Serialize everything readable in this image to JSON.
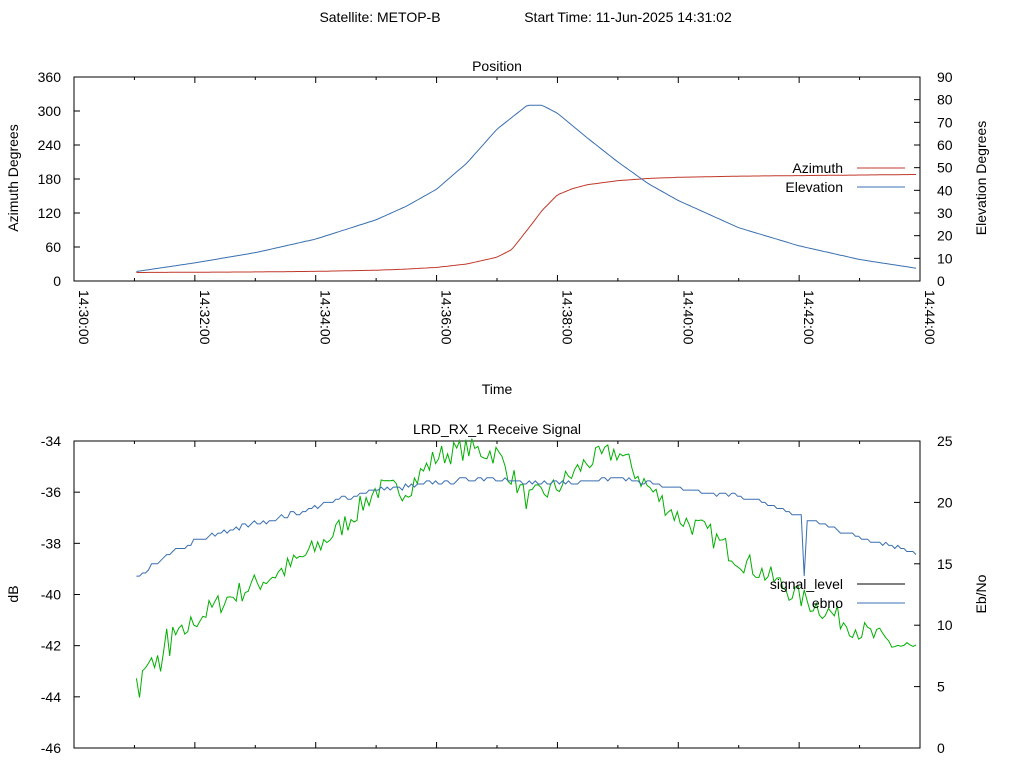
{
  "header": {
    "satellite": "Satellite: METOP-B",
    "start_time": "Start Time: 11-Jun-2025 14:31:02"
  },
  "chart_data": [
    {
      "type": "line",
      "title": "Position",
      "xlabel": "Time",
      "ylabel": "Azimuth Degrees",
      "y2label": "Elevation Degrees",
      "xlim": [
        "14:30:00",
        "14:44:00"
      ],
      "xticks": [
        "14:30:00",
        "14:32:00",
        "14:34:00",
        "14:36:00",
        "14:38:00",
        "14:40:00",
        "14:42:00",
        "14:44:00"
      ],
      "ylim": [
        0,
        360
      ],
      "yticks": [
        0,
        60,
        120,
        180,
        240,
        300,
        360
      ],
      "y2lim": [
        0,
        90
      ],
      "y2ticks": [
        0,
        10,
        20,
        30,
        40,
        50,
        60,
        70,
        80,
        90
      ],
      "legend_position": "right",
      "series": [
        {
          "name": "Azimuth",
          "axis": "y",
          "color": "#c0392b",
          "x": [
            "14:31:02",
            "14:32:00",
            "14:33:00",
            "14:34:00",
            "14:35:00",
            "14:35:30",
            "14:36:00",
            "14:36:30",
            "14:37:00",
            "14:37:15",
            "14:37:30",
            "14:37:45",
            "14:38:00",
            "14:38:15",
            "14:38:30",
            "14:39:00",
            "14:39:30",
            "14:40:00",
            "14:41:00",
            "14:42:00",
            "14:43:00",
            "14:43:58"
          ],
          "values": [
            15,
            15.5,
            16,
            17,
            19,
            21,
            24,
            30,
            42,
            56,
            90,
            125,
            152,
            163,
            170,
            177,
            181,
            183,
            185,
            186,
            187,
            188
          ]
        },
        {
          "name": "Elevation",
          "axis": "y2",
          "color": "#3a6fb0",
          "x": [
            "14:31:02",
            "14:32:00",
            "14:33:00",
            "14:34:00",
            "14:35:00",
            "14:35:30",
            "14:36:00",
            "14:36:30",
            "14:37:00",
            "14:37:30",
            "14:37:45",
            "14:38:00",
            "14:38:30",
            "14:39:00",
            "14:39:30",
            "14:40:00",
            "14:41:00",
            "14:42:00",
            "14:43:00",
            "14:43:58"
          ],
          "values": [
            4.2,
            8.0,
            12.5,
            18.5,
            27,
            33,
            40.5,
            52,
            67,
            77.5,
            77.5,
            74,
            63,
            52.5,
            43,
            35.5,
            23.5,
            15.5,
            9.5,
            5.5
          ]
        }
      ]
    },
    {
      "type": "line",
      "title": "LRD_RX_1 Receive Signal",
      "ylabel": "dB",
      "y2label": "Eb/No",
      "xlim": [
        "14:30:00",
        "14:44:00"
      ],
      "ylim": [
        -46,
        -34
      ],
      "yticks": [
        -46,
        -44,
        -42,
        -40,
        -38,
        -36,
        -34
      ],
      "y2lim": [
        0,
        25
      ],
      "y2ticks": [
        0,
        5,
        10,
        15,
        20,
        25
      ],
      "legend_position": "right",
      "series": [
        {
          "name": "signal_level",
          "axis": "y",
          "color": "#00b000",
          "x": [
            "14:31:02",
            "14:31:30",
            "14:32:00",
            "14:32:30",
            "14:33:00",
            "14:33:30",
            "14:34:00",
            "14:34:30",
            "14:35:00",
            "14:35:30",
            "14:36:00",
            "14:36:30",
            "14:37:00",
            "14:37:30",
            "14:38:00",
            "14:38:30",
            "14:39:00",
            "14:39:30",
            "14:40:00",
            "14:40:30",
            "14:41:00",
            "14:41:30",
            "14:42:00",
            "14:42:30",
            "14:43:00",
            "14:43:30",
            "14:43:58"
          ],
          "values": [
            -43.5,
            -42.3,
            -41,
            -40.2,
            -39.6,
            -39,
            -38.2,
            -37.2,
            -35.9,
            -35.9,
            -34.6,
            -34.3,
            -34.5,
            -36.3,
            -35.8,
            -34.8,
            -34.4,
            -35.8,
            -37,
            -37.6,
            -38.6,
            -39.3,
            -40.1,
            -40.7,
            -41.4,
            -41.9,
            -42.2
          ]
        },
        {
          "name": "ebno",
          "axis": "y2",
          "color": "#3a6fb0",
          "x": [
            "14:31:02",
            "14:31:30",
            "14:32:00",
            "14:32:30",
            "14:33:00",
            "14:33:30",
            "14:34:00",
            "14:34:30",
            "14:35:00",
            "14:35:30",
            "14:36:00",
            "14:36:30",
            "14:37:00",
            "14:37:30",
            "14:38:00",
            "14:38:30",
            "14:39:00",
            "14:39:30",
            "14:40:00",
            "14:40:30",
            "14:41:00",
            "14:41:30",
            "14:42:00",
            "14:42:30",
            "14:43:00",
            "14:43:30",
            "14:43:58"
          ],
          "values": [
            13.8,
            15.6,
            16.8,
            17.6,
            18.3,
            18.9,
            19.6,
            20.4,
            21.0,
            21.3,
            21.6,
            21.9,
            22.0,
            21.5,
            21.6,
            21.8,
            22.0,
            21.6,
            21.1,
            20.7,
            20.6,
            19.8,
            18.9,
            18.0,
            17.2,
            16.6,
            15.8
          ]
        }
      ]
    }
  ]
}
